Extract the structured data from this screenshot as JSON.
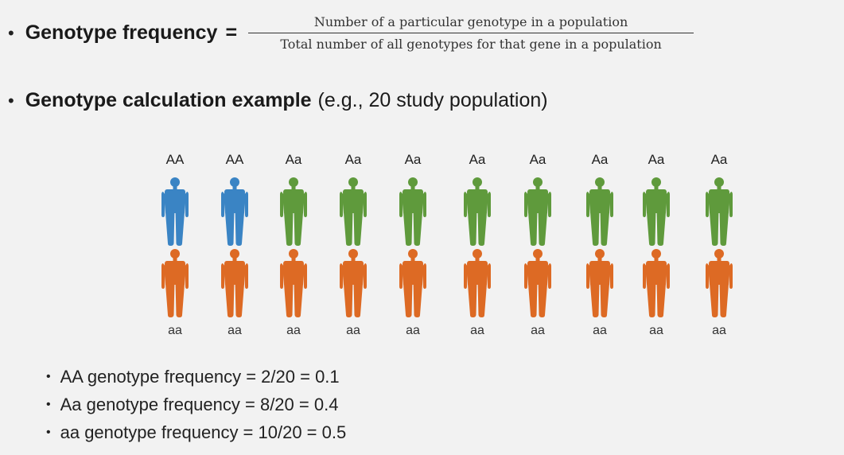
{
  "definition": {
    "term": "Genotype frequency",
    "equals": "=",
    "numerator": "Number of a particular genotype in a population",
    "denominator": "Total number of all genotypes for that gene in a population"
  },
  "example": {
    "bold": "Genotype calculation example",
    "rest": "(e.g., 20 study population)"
  },
  "colors": {
    "AA": "#3a84c4",
    "Aa": "#5f9a3c",
    "aa": "#dd6a24"
  },
  "population": [
    {
      "top": "AA",
      "bottom": "aa"
    },
    {
      "top": "AA",
      "bottom": "aa"
    },
    {
      "top": "Aa",
      "bottom": "aa"
    },
    {
      "top": "Aa",
      "bottom": "aa"
    },
    {
      "top": "Aa",
      "bottom": "aa"
    },
    {
      "top": "Aa",
      "bottom": "aa"
    },
    {
      "top": "Aa",
      "bottom": "aa"
    },
    {
      "top": "Aa",
      "bottom": "aa"
    },
    {
      "top": "Aa",
      "bottom": "aa"
    },
    {
      "top": "Aa",
      "bottom": "aa"
    }
  ],
  "results": [
    "AA genotype frequency = 2/20 = 0.1",
    "Aa genotype frequency = 8/20 = 0.4",
    "aa genotype frequency = 10/20 = 0.5"
  ]
}
